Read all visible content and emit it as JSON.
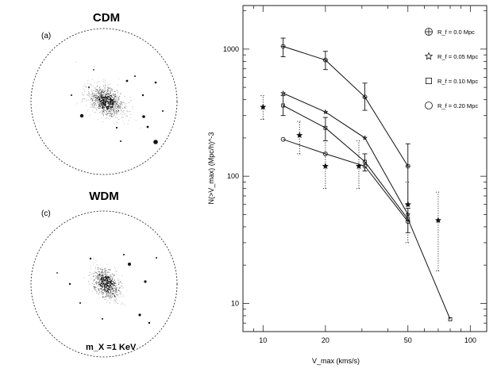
{
  "panels": [
    {
      "title": "CDM",
      "tag": "(a)",
      "note": ""
    },
    {
      "title": "WDM",
      "tag": "(c)",
      "note": "m_X =1 KeV"
    }
  ],
  "chart_data": {
    "type": "line",
    "xscale": "log",
    "yscale": "log",
    "xlim": [
      8,
      120
    ],
    "ylim": [
      6,
      2200
    ],
    "xlabel": "V_max (kms/s)",
    "ylabel": "N(>V_max) (Mpc/h)^-3",
    "x_ticks": [
      10,
      20,
      50,
      100
    ],
    "y_ticks": [
      10,
      100,
      1000
    ],
    "legend_position": "top-right",
    "series": [
      {
        "name": "R_f = 0.0 Mpc",
        "marker": "plus-circle",
        "x": [
          12.5,
          20,
          31,
          50
        ],
        "y": [
          1050,
          820,
          420,
          120
        ],
        "err_low": [
          870,
          690,
          330,
          60
        ],
        "err_high": [
          1220,
          960,
          540,
          180
        ]
      },
      {
        "name": "R_f = 0.05 Mpc",
        "marker": "star",
        "x": [
          12.5,
          20,
          31,
          50
        ],
        "y": [
          450,
          320,
          200,
          50
        ]
      },
      {
        "name": "R_f = 0.10 Mpc",
        "marker": "square",
        "x": [
          12.5,
          20,
          31,
          50,
          80
        ],
        "y": [
          360,
          240,
          130,
          46,
          7.5
        ],
        "err_low": [
          300,
          190,
          110,
          36,
          7.5
        ],
        "err_high": [
          430,
          290,
          150,
          56,
          7.5
        ]
      },
      {
        "name": "R_f = 0.20 Mpc",
        "marker": "circle",
        "x": [
          12.5,
          20,
          31,
          50
        ],
        "y": [
          195,
          150,
          120,
          44
        ]
      },
      {
        "name": "",
        "marker": "filled-star",
        "style": "dotted-errorbars",
        "x": [
          10,
          15,
          20,
          29,
          50,
          70
        ],
        "y": [
          350,
          210,
          120,
          120,
          60,
          45
        ],
        "err_low": [
          280,
          150,
          80,
          80,
          30,
          18
        ],
        "err_high": [
          430,
          270,
          190,
          190,
          90,
          75
        ]
      }
    ]
  }
}
